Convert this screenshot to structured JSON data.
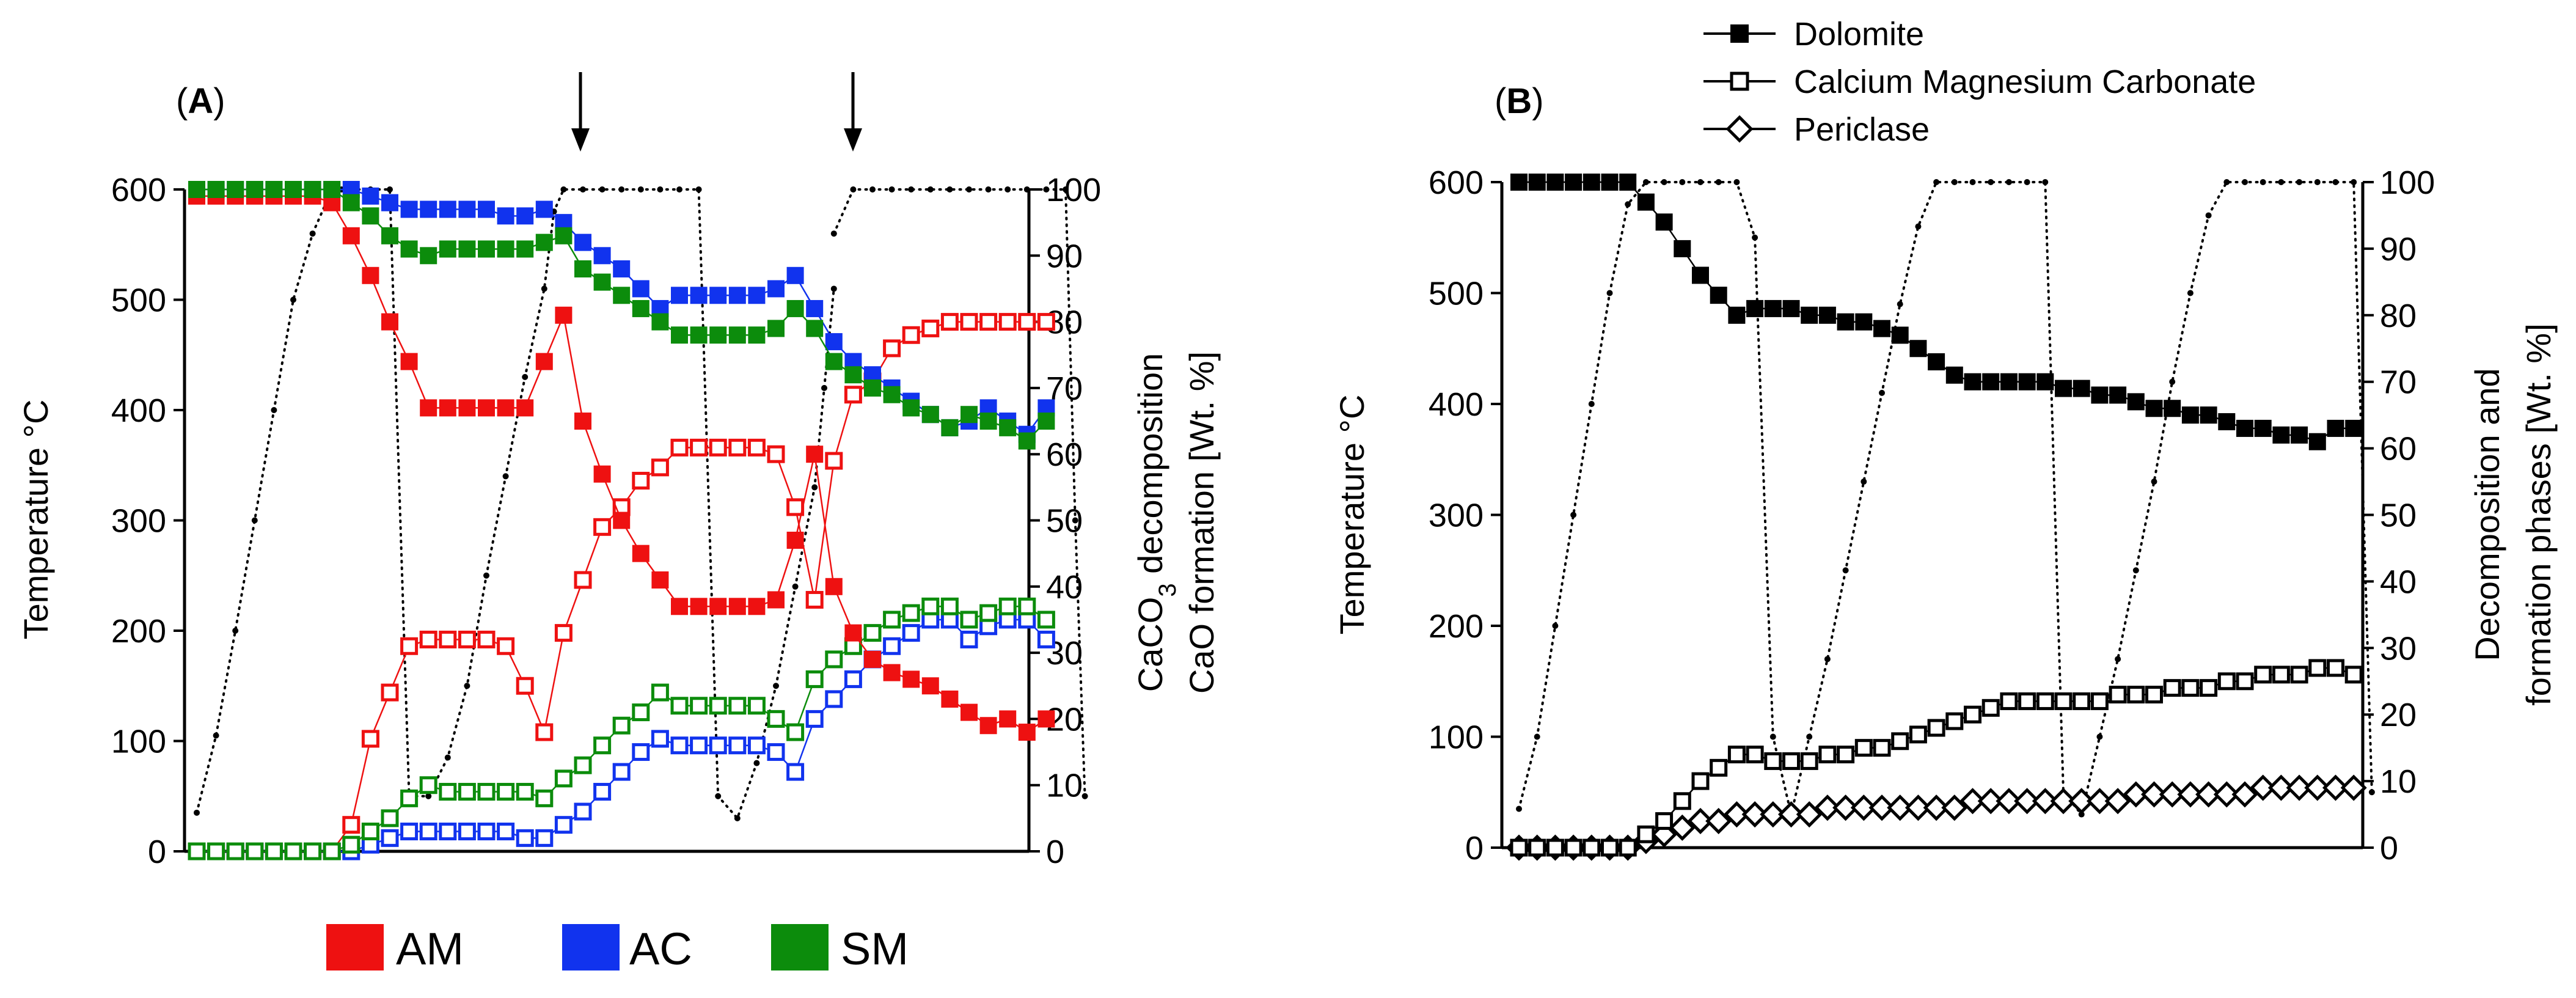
{
  "chart_data": [
    {
      "type": "line",
      "panel_label_paren_open": "(",
      "panel_label": "A",
      "panel_label_paren_close": ")",
      "x_axis": "sample index (no tick labels shown)",
      "ylabel_left": "Temperature °C",
      "ylabel_right_line1_prefix": "CaCO",
      "ylabel_right_line1_sub": "3",
      "ylabel_right_line1_suffix": " decomposition",
      "ylabel_right_line2": "CaO formation [Wt. %]",
      "ylim_left": [
        0,
        600
      ],
      "ylim_right": [
        0,
        100
      ],
      "yticks_left": [
        "0",
        "100",
        "200",
        "300",
        "400",
        "500",
        "600"
      ],
      "yticks_right": [
        "0",
        "10",
        "20",
        "30",
        "40",
        "50",
        "60",
        "70",
        "80",
        "90",
        "100"
      ],
      "arrows": "two downward arrows marking the start of the second and third heating cycles",
      "legend": [
        {
          "name": "AM",
          "color": "#ee1111"
        },
        {
          "name": "AC",
          "color": "#1133ee"
        },
        {
          "name": "SM",
          "color": "#0c8c0c"
        }
      ],
      "temperature": {
        "name": "Temperature",
        "color": "#000000",
        "x": [
          0,
          1,
          2,
          3,
          4,
          5,
          6,
          7,
          7.5,
          8,
          9,
          10,
          11,
          12,
          13,
          14,
          15,
          16,
          17,
          18,
          18.5,
          19,
          20,
          21,
          22,
          23,
          24,
          25,
          26,
          27,
          28,
          29,
          30,
          31,
          32,
          32.5,
          33
        ],
        "y": [
          35,
          105,
          200,
          300,
          400,
          500,
          560,
          600,
          600,
          600,
          600,
          600,
          50,
          50,
          85,
          150,
          250,
          340,
          430,
          510,
          580,
          600,
          600,
          600,
          600,
          600,
          600,
          600,
          600,
          50,
          30,
          80,
          150,
          240,
          330,
          420,
          510
        ]
      },
      "temperature_extra": {
        "x": [
          33,
          34,
          35,
          36,
          37,
          38,
          39,
          40,
          41,
          42,
          43,
          44,
          45,
          45.5,
          46
        ],
        "y": [
          560,
          600,
          600,
          600,
          600,
          600,
          600,
          600,
          600,
          600,
          600,
          600,
          600,
          300,
          50
        ]
      },
      "series_filled": [
        {
          "name": "AM",
          "color": "#ee1111",
          "x": [
            0,
            1,
            2,
            3,
            4,
            5,
            6,
            7,
            8,
            9,
            10,
            11,
            12,
            13,
            14,
            15,
            16,
            17,
            18,
            19,
            20,
            21,
            22,
            23,
            24,
            25,
            26,
            27,
            28,
            29,
            30,
            31,
            32,
            33,
            34,
            35,
            36,
            37,
            38,
            39,
            40,
            41,
            42,
            43,
            44
          ],
          "y": [
            99,
            99,
            99,
            99,
            99,
            99,
            99,
            98,
            93,
            87,
            80,
            74,
            67,
            67,
            67,
            67,
            67,
            67,
            74,
            81,
            65,
            57,
            50,
            45,
            41,
            37,
            37,
            37,
            37,
            37,
            38,
            47,
            60,
            40,
            33,
            29,
            27,
            26,
            25,
            23,
            21,
            19,
            20,
            18,
            20
          ]
        },
        {
          "name": "AC",
          "color": "#1133ee",
          "x": [
            0,
            1,
            2,
            3,
            4,
            5,
            6,
            7,
            8,
            9,
            10,
            11,
            12,
            13,
            14,
            15,
            16,
            17,
            18,
            19,
            20,
            21,
            22,
            23,
            24,
            25,
            26,
            27,
            28,
            29,
            30,
            31,
            32,
            33,
            34,
            35,
            36,
            37,
            38,
            39,
            40,
            41,
            42,
            43,
            44
          ],
          "y": [
            100,
            100,
            100,
            100,
            100,
            100,
            100,
            100,
            100,
            99,
            98,
            97,
            97,
            97,
            97,
            97,
            96,
            96,
            97,
            95,
            92,
            90,
            88,
            85,
            82,
            84,
            84,
            84,
            84,
            84,
            85,
            87,
            82,
            77,
            74,
            72,
            70,
            68,
            66,
            64,
            65,
            67,
            65,
            63,
            67
          ]
        },
        {
          "name": "SM",
          "color": "#0c8c0c",
          "x": [
            0,
            1,
            2,
            3,
            4,
            5,
            6,
            7,
            8,
            9,
            10,
            11,
            12,
            13,
            14,
            15,
            16,
            17,
            18,
            19,
            20,
            21,
            22,
            23,
            24,
            25,
            26,
            27,
            28,
            29,
            30,
            31,
            32,
            33,
            34,
            35,
            36,
            37,
            38,
            39,
            40,
            41,
            42,
            43,
            44
          ],
          "y": [
            100,
            100,
            100,
            100,
            100,
            100,
            100,
            100,
            98,
            96,
            93,
            91,
            90,
            91,
            91,
            91,
            91,
            91,
            92,
            93,
            88,
            86,
            84,
            82,
            80,
            78,
            78,
            78,
            78,
            78,
            79,
            82,
            79,
            74,
            72,
            70,
            69,
            67,
            66,
            64,
            66,
            65,
            64,
            62,
            65
          ]
        }
      ],
      "series_open": [
        {
          "name": "AM",
          "color": "#ee1111",
          "x": [
            0,
            1,
            2,
            3,
            4,
            5,
            6,
            7,
            8,
            9,
            10,
            11,
            12,
            13,
            14,
            15,
            16,
            17,
            18,
            19,
            20,
            21,
            22,
            23,
            24,
            25,
            26,
            27,
            28,
            29,
            30,
            31,
            32,
            33,
            34,
            35,
            36,
            37,
            38,
            39,
            40,
            41,
            42,
            43,
            44
          ],
          "y": [
            0,
            0,
            0,
            0,
            0,
            0,
            0,
            0,
            4,
            17,
            24,
            31,
            32,
            32,
            32,
            32,
            31,
            25,
            18,
            33,
            41,
            49,
            52,
            56,
            58,
            61,
            61,
            61,
            61,
            61,
            60,
            52,
            38,
            59,
            69,
            71,
            76,
            78,
            79,
            80,
            80,
            80,
            80,
            80,
            80
          ]
        },
        {
          "name": "AC",
          "color": "#1133ee",
          "x": [
            0,
            1,
            2,
            3,
            4,
            5,
            6,
            7,
            8,
            9,
            10,
            11,
            12,
            13,
            14,
            15,
            16,
            17,
            18,
            19,
            20,
            21,
            22,
            23,
            24,
            25,
            26,
            27,
            28,
            29,
            30,
            31,
            32,
            33,
            34,
            35,
            36,
            37,
            38,
            39,
            40,
            41,
            42,
            43,
            44
          ],
          "y": [
            0,
            0,
            0,
            0,
            0,
            0,
            0,
            0,
            0,
            1,
            2,
            3,
            3,
            3,
            3,
            3,
            3,
            2,
            2,
            4,
            6,
            9,
            12,
            15,
            17,
            16,
            16,
            16,
            16,
            16,
            15,
            12,
            20,
            23,
            26,
            29,
            31,
            33,
            35,
            35,
            32,
            34,
            35,
            35,
            32
          ]
        },
        {
          "name": "SM",
          "color": "#0c8c0c",
          "x": [
            0,
            1,
            2,
            3,
            4,
            5,
            6,
            7,
            8,
            9,
            10,
            11,
            12,
            13,
            14,
            15,
            16,
            17,
            18,
            19,
            20,
            21,
            22,
            23,
            24,
            25,
            26,
            27,
            28,
            29,
            30,
            31,
            32,
            33,
            34,
            35,
            36,
            37,
            38,
            39,
            40,
            41,
            42,
            43,
            44
          ],
          "y": [
            0,
            0,
            0,
            0,
            0,
            0,
            0,
            0,
            1,
            3,
            5,
            8,
            10,
            9,
            9,
            9,
            9,
            9,
            8,
            11,
            13,
            16,
            19,
            21,
            24,
            22,
            22,
            22,
            22,
            22,
            20,
            18,
            26,
            29,
            31,
            33,
            35,
            36,
            37,
            37,
            35,
            36,
            37,
            37,
            35
          ]
        }
      ]
    },
    {
      "type": "line",
      "panel_label_paren_open": "(",
      "panel_label": "B",
      "panel_label_paren_close": ")",
      "ylabel_left": "Temperature °C",
      "ylabel_right_line1": "Decomposition and",
      "ylabel_right_line2": "formation phases [Wt. %]",
      "ylim_left": [
        0,
        600
      ],
      "ylim_right": [
        0,
        100
      ],
      "yticks_left": [
        "0",
        "100",
        "200",
        "300",
        "400",
        "500",
        "600"
      ],
      "yticks_right": [
        "0",
        "10",
        "20",
        "30",
        "40",
        "50",
        "60",
        "70",
        "80",
        "90",
        "100"
      ],
      "legend": [
        {
          "name": "Dolomite",
          "marker": "filled-square"
        },
        {
          "name": "Calcium Magnesium Carbonate",
          "marker": "open-square"
        },
        {
          "name": "Periclase",
          "marker": "open-diamond"
        }
      ],
      "temperature": {
        "name": "Temperature",
        "color": "#000000",
        "x": [
          0,
          1,
          2,
          3,
          4,
          5,
          6,
          7,
          8,
          9,
          10,
          11,
          12,
          13,
          14,
          15,
          16,
          17,
          18,
          19,
          20,
          21,
          22,
          23,
          24,
          25,
          26,
          27,
          28,
          29,
          30,
          31,
          32,
          33,
          34,
          35,
          36,
          37,
          38,
          39,
          40,
          41,
          42,
          43,
          44,
          45,
          46,
          47
        ],
        "y": [
          35,
          100,
          200,
          300,
          400,
          500,
          580,
          600,
          600,
          600,
          600,
          600,
          600,
          550,
          100,
          30,
          100,
          170,
          250,
          330,
          410,
          490,
          560,
          600,
          600,
          600,
          600,
          600,
          600,
          600,
          50,
          30,
          100,
          170,
          250,
          330,
          420,
          500,
          570,
          600,
          600,
          600,
          600,
          600,
          600,
          600,
          600,
          50
        ]
      },
      "series": [
        {
          "name": "Dolomite",
          "x": [
            0,
            1,
            2,
            3,
            4,
            5,
            6,
            7,
            8,
            9,
            10,
            11,
            12,
            13,
            14,
            15,
            16,
            17,
            18,
            19,
            20,
            21,
            22,
            23,
            24,
            25,
            26,
            27,
            28,
            29,
            30,
            31,
            32,
            33,
            34,
            35,
            36,
            37,
            38,
            39,
            40,
            41,
            42,
            43,
            44,
            45,
            46
          ],
          "y": [
            100,
            100,
            100,
            100,
            100,
            100,
            100,
            97,
            94,
            90,
            86,
            83,
            80,
            81,
            81,
            81,
            80,
            80,
            79,
            79,
            78,
            77,
            75,
            73,
            71,
            70,
            70,
            70,
            70,
            70,
            69,
            69,
            68,
            68,
            67,
            66,
            66,
            65,
            65,
            64,
            63,
            63,
            62,
            62,
            61,
            63,
            63
          ]
        },
        {
          "name": "Calcium Magnesium Carbonate",
          "x": [
            0,
            1,
            2,
            3,
            4,
            5,
            6,
            7,
            8,
            9,
            10,
            11,
            12,
            13,
            14,
            15,
            16,
            17,
            18,
            19,
            20,
            21,
            22,
            23,
            24,
            25,
            26,
            27,
            28,
            29,
            30,
            31,
            32,
            33,
            34,
            35,
            36,
            37,
            38,
            39,
            40,
            41,
            42,
            43,
            44,
            45,
            46
          ],
          "y": [
            0,
            0,
            0,
            0,
            0,
            0,
            0,
            2,
            4,
            7,
            10,
            12,
            14,
            14,
            13,
            13,
            13,
            14,
            14,
            15,
            15,
            16,
            17,
            18,
            19,
            20,
            21,
            22,
            22,
            22,
            22,
            22,
            22,
            23,
            23,
            23,
            24,
            24,
            24,
            25,
            25,
            26,
            26,
            26,
            27,
            27,
            26
          ]
        },
        {
          "name": "Periclase",
          "x": [
            0,
            1,
            2,
            3,
            4,
            5,
            6,
            7,
            8,
            9,
            10,
            11,
            12,
            13,
            14,
            15,
            16,
            17,
            18,
            19,
            20,
            21,
            22,
            23,
            24,
            25,
            26,
            27,
            28,
            29,
            30,
            31,
            32,
            33,
            34,
            35,
            36,
            37,
            38,
            39,
            40,
            41,
            42,
            43,
            44,
            45,
            46
          ],
          "y": [
            0,
            0,
            0,
            0,
            0,
            0,
            0,
            1,
            2,
            3,
            4,
            4,
            5,
            5,
            5,
            5,
            5,
            6,
            6,
            6,
            6,
            6,
            6,
            6,
            6,
            7,
            7,
            7,
            7,
            7,
            7,
            7,
            7,
            7,
            8,
            8,
            8,
            8,
            8,
            8,
            8,
            9,
            9,
            9,
            9,
            9,
            9
          ]
        }
      ]
    }
  ]
}
